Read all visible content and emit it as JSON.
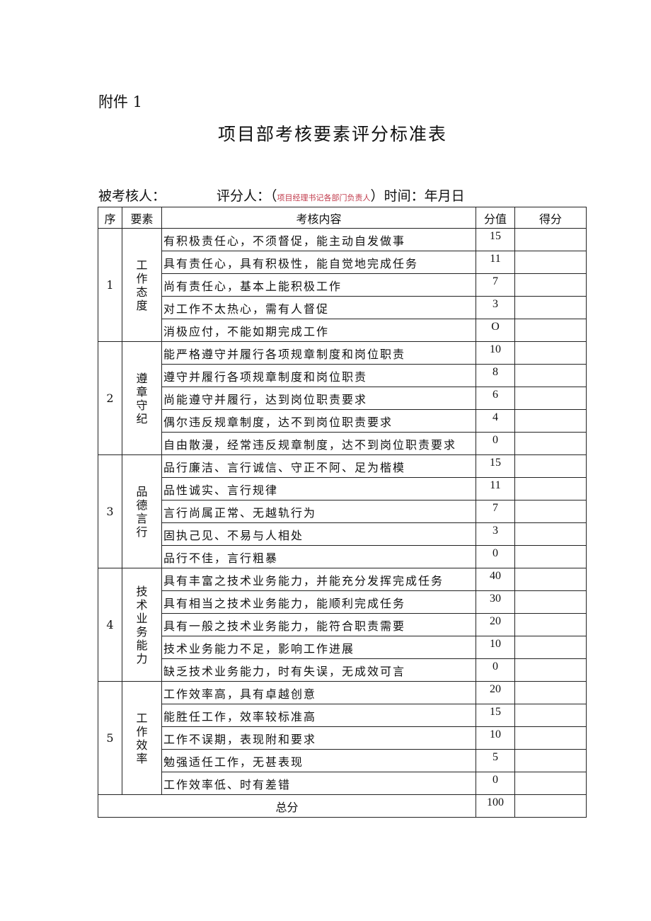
{
  "attachment": "附件 1",
  "title": "项目部考核要素评分标准表",
  "meta": {
    "assessee": "被考核人：",
    "rater": "评分人：",
    "paren_open": "（",
    "note": "项目经理书记各部门负责人",
    "paren_close": "）",
    "time": "时间：年月日"
  },
  "header": {
    "seq": "序",
    "element": "要素",
    "content": "考核内容",
    "points": "分值",
    "score": "得分"
  },
  "groups": [
    {
      "seq": "1",
      "element": "工作态度",
      "items": [
        [
          "有积极责任心，不须督促，能主动自发做事",
          "15"
        ],
        [
          "具有责任心，具有积极性，能自觉地完成任务",
          "11"
        ],
        [
          "尚有责任心，基本上能积极工作",
          "7"
        ],
        [
          "对工作不太热心，需有人督促",
          "3"
        ],
        [
          "消极应付，不能如期完成工作",
          "O"
        ]
      ]
    },
    {
      "seq": "2",
      "element": "遵章守纪",
      "items": [
        [
          "能严格遵守并履行各项规章制度和岗位职责",
          "10"
        ],
        [
          "遵守并履行各项规章制度和岗位职责",
          "8"
        ],
        [
          "尚能遵守并履行，达到岗位职责要求",
          "6"
        ],
        [
          "偶尔违反规章制度，达不到岗位职责要求",
          "4"
        ],
        [
          "自由散漫，经常违反规章制度，达不到岗位职责要求",
          "0"
        ]
      ]
    },
    {
      "seq": "3",
      "element": "品德言行",
      "items": [
        [
          "品行廉洁、言行诚信、守正不阿、足为楷模",
          "15"
        ],
        [
          "品性诚实、言行规律",
          "11"
        ],
        [
          "言行尚属正常、无越轨行为",
          "7"
        ],
        [
          "固执己见、不易与人相处",
          "3"
        ],
        [
          "品行不佳，言行粗暴",
          "0"
        ]
      ]
    },
    {
      "seq": "4",
      "element": "技术业务能力",
      "items": [
        [
          "具有丰富之技术业务能力，并能充分发挥完成任务",
          "40"
        ],
        [
          "具有相当之技术业务能力，能顺利完成任务",
          "30"
        ],
        [
          "具有一般之技术业务能力，能符合职责需要",
          "20"
        ],
        [
          "技术业务能力不足，影响工作进展",
          "10"
        ],
        [
          "缺乏技术业务能力，时有失误，无成效可言",
          "0"
        ]
      ]
    },
    {
      "seq": "5",
      "element": "工作效率",
      "items": [
        [
          "工作效率高，具有卓越创意",
          "20"
        ],
        [
          "能胜任工作，效率较标准高",
          "15"
        ],
        [
          "工作不误期，表现附和要求",
          "10"
        ],
        [
          "勉强适任工作，无甚表现",
          "5"
        ],
        [
          "工作效率低、时有差错",
          "0"
        ]
      ]
    }
  ],
  "total": {
    "label": "总分",
    "points": "100"
  }
}
